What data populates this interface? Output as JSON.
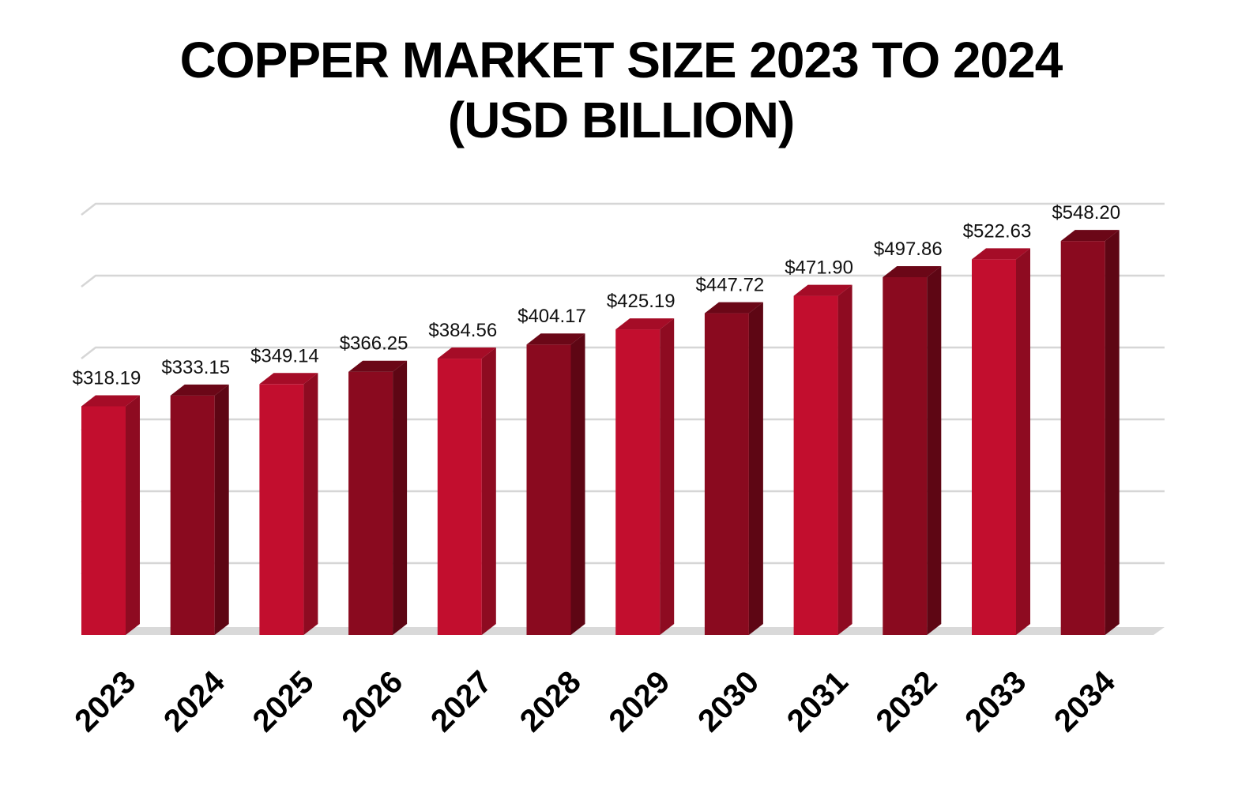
{
  "title": {
    "line1": "COPPER MARKET SIZE 2023 TO 2024",
    "line2": "(USD BILLION)"
  },
  "colors": {
    "bright_front": "#c20e2e",
    "bright_side": "#8e0b21",
    "bright_top": "#a50c27",
    "dark_front": "#8a0a1f",
    "dark_side": "#5e0614",
    "dark_top": "#6b0717",
    "grid": "#d6d6d6",
    "floor": "#d9d9d9"
  },
  "chart_data": {
    "type": "bar",
    "title": "COPPER MARKET SIZE 2023 TO 2024 (USD BILLION)",
    "categories": [
      "2023",
      "2024",
      "2025",
      "2026",
      "2027",
      "2028",
      "2029",
      "2030",
      "2031",
      "2032",
      "2033",
      "2034"
    ],
    "values": [
      318.19,
      333.15,
      349.14,
      366.25,
      384.56,
      404.17,
      425.19,
      447.72,
      471.9,
      497.86,
      522.63,
      548.2
    ],
    "labels": [
      "$318.19",
      "$333.15",
      "$349.14",
      "$366.25",
      "$384.56",
      "$404.17",
      "$425.19",
      "$447.72",
      "$471.90",
      "$497.86",
      "$522.63",
      "$548.20"
    ],
    "bar_colors": [
      "bright",
      "dark",
      "bright",
      "dark",
      "bright",
      "dark",
      "bright",
      "dark",
      "bright",
      "dark",
      "bright",
      "dark"
    ],
    "xlabel": "",
    "ylabel": "",
    "ylim": [
      0,
      600
    ],
    "grid": true,
    "legend": "none",
    "style": "3d-bars"
  }
}
